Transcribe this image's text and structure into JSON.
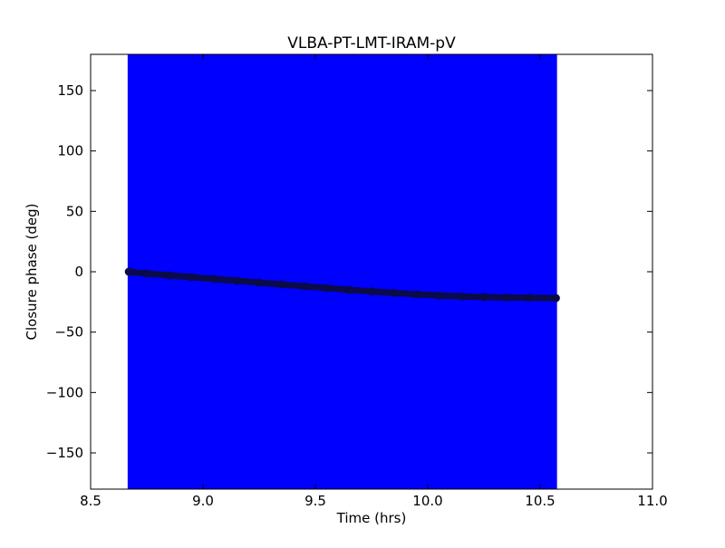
{
  "chart_data": {
    "type": "scatter",
    "title": "VLBA-PT-LMT-IRAM-pV",
    "xlabel": "Time (hrs)",
    "ylabel": "Closure phase (deg)",
    "xlim": [
      8.5,
      11.0
    ],
    "ylim": [
      -180,
      180
    ],
    "xticks": [
      8.5,
      9.0,
      9.5,
      10.0,
      10.5,
      11.0
    ],
    "xtick_labels": [
      "8.5",
      "9.0",
      "9.5",
      "10.0",
      "10.5",
      "11.0"
    ],
    "yticks": [
      150,
      100,
      50,
      0,
      -50,
      -100,
      -150
    ],
    "ytick_labels": [
      "150",
      "100",
      "50",
      "0",
      "−50",
      "−100",
      "−150"
    ],
    "grid": false,
    "series": [
      {
        "color": "#0b0b4a",
        "error_color": "#0000ff",
        "x": [
          8.67,
          8.75,
          8.85,
          8.95,
          9.05,
          9.15,
          9.25,
          9.35,
          9.45,
          9.55,
          9.65,
          9.75,
          9.85,
          9.95,
          10.05,
          10.15,
          10.25,
          10.35,
          10.45,
          10.57
        ],
        "y": [
          0,
          -1.5,
          -3.0,
          -4.5,
          -6.0,
          -7.5,
          -9.0,
          -10.5,
          -12.0,
          -13.5,
          -15.0,
          -16.3,
          -17.5,
          -18.7,
          -19.7,
          -20.4,
          -21.0,
          -21.4,
          -21.6,
          -21.8
        ],
        "error_low": -180,
        "error_high": 180
      }
    ]
  }
}
